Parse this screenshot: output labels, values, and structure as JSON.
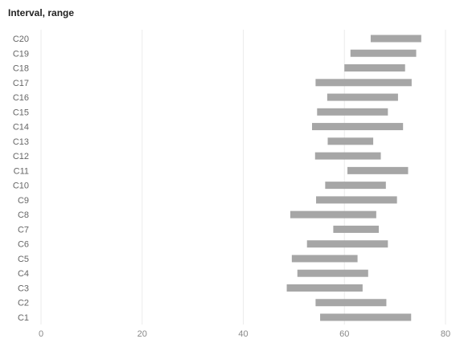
{
  "chart_data": {
    "type": "bar",
    "subtype": "floating-range-horizontal",
    "title": "Interval, range",
    "xlabel": "",
    "ylabel": "",
    "xlim": [
      0,
      80
    ],
    "x_ticks": [
      0,
      20,
      40,
      60,
      80
    ],
    "grid": true,
    "legend": "none",
    "bar_color": "#a6a6a6",
    "grid_color": "#ebebeb",
    "categories": [
      "C1",
      "C2",
      "C3",
      "C4",
      "C5",
      "C6",
      "C7",
      "C8",
      "C9",
      "C10",
      "C11",
      "C12",
      "C13",
      "C14",
      "C15",
      "C16",
      "C17",
      "C18",
      "C19",
      "C20"
    ],
    "ranges": [
      [
        55.2,
        73.2
      ],
      [
        54.3,
        68.3
      ],
      [
        48.6,
        63.6
      ],
      [
        50.7,
        64.7
      ],
      [
        49.6,
        62.6
      ],
      [
        52.6,
        68.6
      ],
      [
        57.8,
        66.8
      ],
      [
        49.3,
        66.3
      ],
      [
        54.4,
        70.4
      ],
      [
        56.2,
        68.2
      ],
      [
        60.6,
        72.6
      ],
      [
        54.2,
        67.2
      ],
      [
        56.7,
        65.7
      ],
      [
        53.6,
        71.6
      ],
      [
        54.6,
        68.6
      ],
      [
        56.6,
        70.6
      ],
      [
        54.3,
        73.3
      ],
      [
        60.0,
        72.0
      ],
      [
        61.2,
        74.2
      ],
      [
        65.2,
        75.2
      ]
    ]
  }
}
